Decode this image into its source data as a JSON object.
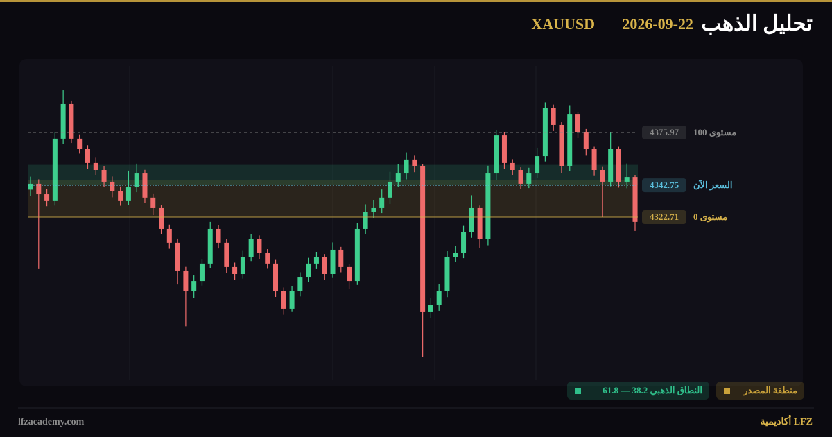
{
  "chart_data": {
    "type": "candlestick",
    "title": "تحليل الذهب",
    "date": "2026-09-22",
    "symbol": "XAUUSD",
    "ylim": [
      4221.4,
      4417.9
    ],
    "up_color": "#3ecf8e",
    "down_color": "#ef6b6b",
    "open": [
      4340.0,
      4343.7,
      4337.1,
      4332.8,
      4372.1,
      4393.9,
      4372.1,
      4365.5,
      4356.8,
      4352.4,
      4345.0,
      4339.3,
      4332.8,
      4341.5,
      4350.2,
      4335.0,
      4328.4,
      4315.3,
      4306.6,
      4289.1,
      4276.0,
      4282.5,
      4293.5,
      4315.3,
      4306.6,
      4291.3,
      4286.9,
      4297.8,
      4308.8,
      4300.0,
      4293.5,
      4276.0,
      4265.1,
      4276.0,
      4284.7,
      4293.5,
      4297.8,
      4286.9,
      4302.2,
      4291.3,
      4282.5,
      4315.3,
      4326.2,
      4328.4,
      4335.0,
      4345.0,
      4350.2,
      4359.0,
      4354.6,
      4262.9,
      4267.3,
      4276.0,
      4297.8,
      4300.0,
      4313.1,
      4328.4,
      4308.8,
      4350.2,
      4374.2,
      4356.8,
      4352.4,
      4343.7,
      4350.2,
      4361.1,
      4391.7,
      4380.8,
      4354.6,
      4387.3,
      4376.4,
      4365.5,
      4352.4,
      4345.0,
      4365.5,
      4345.0,
      4348.0
    ],
    "high": [
      4348.2,
      4346.5,
      4340.3,
      4376.0,
      4402.6,
      4396.1,
      4374.8,
      4368.0,
      4360.1,
      4354.9,
      4348.3,
      4342.0,
      4352.0,
      4356.4,
      4352.5,
      4337.6,
      4330.1,
      4318.0,
      4309.2,
      4291.4,
      4286.0,
      4296.3,
      4319.7,
      4317.8,
      4309.0,
      4294.1,
      4301.5,
      4312.0,
      4311.2,
      4302.6,
      4295.8,
      4278.4,
      4279.3,
      4288.0,
      4297.1,
      4300.6,
      4299.5,
      4306.8,
      4304.0,
      4293.2,
      4319.0,
      4330.8,
      4333.5,
      4340.1,
      4351.2,
      4356.0,
      4363.5,
      4361.4,
      4356.0,
      4272.0,
      4280.4,
      4301.3,
      4304.6,
      4317.2,
      4336.5,
      4330.0,
      4355.1,
      4377.3,
      4376.0,
      4359.2,
      4354.1,
      4353.8,
      4366.4,
      4395.0,
      4393.6,
      4382.5,
      4392.8,
      4389.0,
      4378.2,
      4367.0,
      4354.3,
      4375.9,
      4367.0,
      4356.5,
      4349.2
    ],
    "low": [
      4336.1,
      4290.0,
      4329.6,
      4330.0,
      4368.9,
      4369.4,
      4362.7,
      4353.2,
      4349.0,
      4341.8,
      4335.2,
      4329.9,
      4330.5,
      4338.4,
      4331.6,
      4324.0,
      4312.1,
      4302.8,
      4280.3,
      4254.0,
      4271.8,
      4279.6,
      4290.7,
      4303.0,
      4287.5,
      4283.3,
      4284.0,
      4295.1,
      4296.4,
      4290.2,
      4272.5,
      4261.3,
      4263.0,
      4272.8,
      4281.9,
      4290.0,
      4283.1,
      4284.4,
      4288.0,
      4277.5,
      4280.0,
      4311.9,
      4322.0,
      4325.3,
      4331.0,
      4341.6,
      4346.5,
      4351.0,
      4234.5,
      4259.1,
      4263.8,
      4272.4,
      4294.6,
      4296.9,
      4309.7,
      4303.5,
      4305.0,
      4346.0,
      4353.0,
      4348.9,
      4340.2,
      4341.0,
      4347.3,
      4357.8,
      4376.9,
      4350.3,
      4351.8,
      4372.5,
      4361.4,
      4348.6,
      4322.7,
      4342.1,
      4341.3,
      4340.9,
      4314.0
    ],
    "close": [
      4343.7,
      4337.1,
      4332.8,
      4372.1,
      4393.9,
      4372.1,
      4365.5,
      4356.8,
      4352.4,
      4345.0,
      4339.3,
      4332.8,
      4341.5,
      4350.2,
      4335.0,
      4328.4,
      4315.3,
      4306.6,
      4289.1,
      4276.0,
      4282.5,
      4293.5,
      4315.3,
      4306.6,
      4291.3,
      4286.9,
      4297.8,
      4308.8,
      4300.0,
      4293.5,
      4276.0,
      4265.1,
      4276.0,
      4284.7,
      4293.5,
      4297.8,
      4286.9,
      4302.2,
      4291.3,
      4282.5,
      4315.3,
      4326.2,
      4328.4,
      4335.0,
      4345.0,
      4350.2,
      4359.0,
      4354.6,
      4262.9,
      4267.3,
      4276.0,
      4297.8,
      4300.0,
      4313.1,
      4328.4,
      4308.8,
      4350.2,
      4374.2,
      4356.8,
      4352.4,
      4343.7,
      4350.2,
      4361.1,
      4391.7,
      4380.8,
      4354.6,
      4387.3,
      4376.4,
      4365.5,
      4352.4,
      4345.0,
      4365.5,
      4345.0,
      4348.0,
      4319.7
    ],
    "zones": [
      {
        "label": "منطقة المصدر",
        "range": [
          4322.71,
          4345.9
        ],
        "color": "#c9a13a"
      },
      {
        "label": "النطاق الذهبي 38.2 — 61.8",
        "range": [
          4343.05,
          4355.63
        ],
        "color": "#2fbf8a"
      }
    ],
    "levels": [
      {
        "name": "مستوى 100",
        "value": 4375.97,
        "color": "#8a8a8a",
        "style": "dashed"
      },
      {
        "name": "السعر الآن",
        "value": 4342.75,
        "color": "#5bc0de",
        "style": "dotted"
      },
      {
        "name": "مستوى 0",
        "value": 4322.71,
        "color": "#d4b04a",
        "style": "solid"
      }
    ]
  },
  "footer": {
    "site": "lfzacademy.com",
    "brand": "أكاديمية LFZ"
  }
}
